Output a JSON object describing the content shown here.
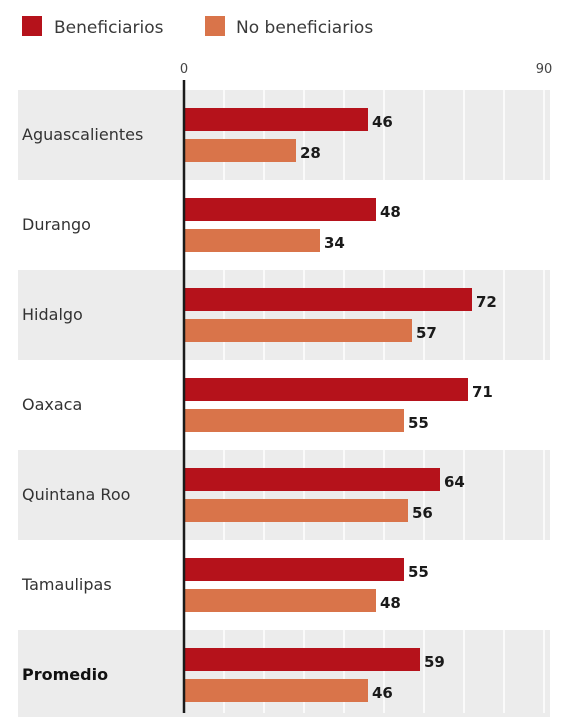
{
  "colors": {
    "beneficiarios": "#b5121b",
    "no_beneficiarios": "#d9744a",
    "band": "#ececec",
    "grid": "#ffffff",
    "axis": "#1a1a1a"
  },
  "chart_data": {
    "type": "bar",
    "orientation": "horizontal",
    "categories": [
      "Aguascalientes",
      "Durango",
      "Hidalgo",
      "Oaxaca",
      "Quintana Roo",
      "Tamaulipas",
      "Promedio"
    ],
    "emphasized_category": "Promedio",
    "series": [
      {
        "name": "Beneficiarios",
        "values": [
          46,
          48,
          72,
          71,
          64,
          55,
          59
        ]
      },
      {
        "name": "No beneficiarios",
        "values": [
          28,
          34,
          57,
          55,
          56,
          48,
          46
        ]
      }
    ],
    "xlim": [
      0,
      90
    ],
    "x_tick_labels": [
      "0",
      "90"
    ],
    "legend": "top-left",
    "grid": true,
    "data_labels": true
  }
}
